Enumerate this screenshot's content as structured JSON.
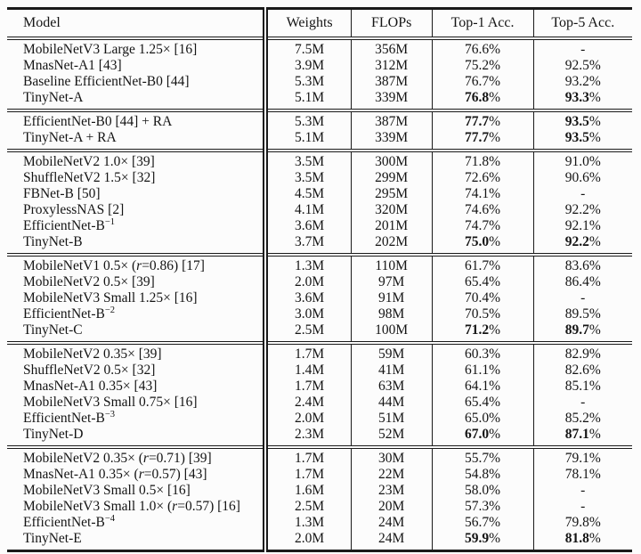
{
  "table": {
    "columns": [
      "Model",
      "Weights",
      "FLOPs",
      "Top-1 Acc.",
      "Top-5 Acc."
    ],
    "sections": [
      {
        "rows": [
          {
            "model": "MobileNetV3 Large 1.25× [16]",
            "weights": "7.5M",
            "flops": "356M",
            "top1": "76.6%",
            "top5": "-",
            "bold": false
          },
          {
            "model": "MnasNet-A1 [43]",
            "weights": "3.9M",
            "flops": "312M",
            "top1": "75.2%",
            "top5": "92.5%",
            "bold": false
          },
          {
            "model": "Baseline EfficientNet-B0 [44]",
            "weights": "5.3M",
            "flops": "387M",
            "top1": "76.7%",
            "top5": "93.2%",
            "bold": false
          },
          {
            "model": "TinyNet-A",
            "weights": "5.1M",
            "flops": "339M",
            "top1": "76.8%",
            "top5": "93.3%",
            "bold": true
          }
        ]
      },
      {
        "rows": [
          {
            "model": "EfficientNet-B0 [44] + RA",
            "weights": "5.3M",
            "flops": "387M",
            "top1": "77.7%",
            "top5": "93.5%",
            "bold": true
          },
          {
            "model": "TinyNet-A + RA",
            "weights": "5.1M",
            "flops": "339M",
            "top1": "77.7%",
            "top5": "93.5%",
            "bold": true
          }
        ]
      },
      {
        "rows": [
          {
            "model": "MobileNetV2 1.0× [39]",
            "weights": "3.5M",
            "flops": "300M",
            "top1": "71.8%",
            "top5": "91.0%",
            "bold": false
          },
          {
            "model": "ShuffleNetV2 1.5× [32]",
            "weights": "3.5M",
            "flops": "299M",
            "top1": "72.6%",
            "top5": "90.6%",
            "bold": false
          },
          {
            "model": "FBNet-B [50]",
            "weights": "4.5M",
            "flops": "295M",
            "top1": "74.1%",
            "top5": "-",
            "bold": false
          },
          {
            "model": "ProxylessNAS [2]",
            "weights": "4.1M",
            "flops": "320M",
            "top1": "74.6%",
            "top5": "92.2%",
            "bold": false
          },
          {
            "model": "EfficientNet-B",
            "sup": "−1",
            "weights": "3.6M",
            "flops": "201M",
            "top1": "74.7%",
            "top5": "92.1%",
            "bold": false
          },
          {
            "model": "TinyNet-B",
            "weights": "3.7M",
            "flops": "202M",
            "top1": "75.0%",
            "top5": "92.2%",
            "bold": true
          }
        ]
      },
      {
        "rows": [
          {
            "model": "MobileNetV1 0.5× (r=0.86) [17]",
            "weights": "1.3M",
            "flops": "110M",
            "top1": "61.7%",
            "top5": "83.6%",
            "bold": false
          },
          {
            "model": "MobileNetV2 0.5× [39]",
            "weights": "2.0M",
            "flops": "97M",
            "top1": "65.4%",
            "top5": "86.4%",
            "bold": false
          },
          {
            "model": "MobileNetV3 Small 1.25× [16]",
            "weights": "3.6M",
            "flops": "91M",
            "top1": "70.4%",
            "top5": "-",
            "bold": false
          },
          {
            "model": "EfficientNet-B",
            "sup": "−2",
            "weights": "3.0M",
            "flops": "98M",
            "top1": "70.5%",
            "top5": "89.5%",
            "bold": false
          },
          {
            "model": "TinyNet-C",
            "weights": "2.5M",
            "flops": "100M",
            "top1": "71.2%",
            "top5": "89.7%",
            "bold": true
          }
        ]
      },
      {
        "rows": [
          {
            "model": "MobileNetV2 0.35× [39]",
            "weights": "1.7M",
            "flops": "59M",
            "top1": "60.3%",
            "top5": "82.9%",
            "bold": false
          },
          {
            "model": "ShuffleNetV2 0.5× [32]",
            "weights": "1.4M",
            "flops": "41M",
            "top1": "61.1%",
            "top5": "82.6%",
            "bold": false
          },
          {
            "model": "MnasNet-A1 0.35× [43]",
            "weights": "1.7M",
            "flops": "63M",
            "top1": "64.1%",
            "top5": "85.1%",
            "bold": false
          },
          {
            "model": "MobileNetV3 Small 0.75× [16]",
            "weights": "2.4M",
            "flops": "44M",
            "top1": "65.4%",
            "top5": "-",
            "bold": false
          },
          {
            "model": "EfficientNet-B",
            "sup": "−3",
            "weights": "2.0M",
            "flops": "51M",
            "top1": "65.0%",
            "top5": "85.2%",
            "bold": false
          },
          {
            "model": "TinyNet-D",
            "weights": "2.3M",
            "flops": "52M",
            "top1": "67.0%",
            "top5": "87.1%",
            "bold": true
          }
        ]
      },
      {
        "rows": [
          {
            "model": "MobileNetV2 0.35× (r=0.71) [39]",
            "weights": "1.7M",
            "flops": "30M",
            "top1": "55.7%",
            "top5": "79.1%",
            "bold": false
          },
          {
            "model": "MnasNet-A1 0.35× (r=0.57) [43]",
            "weights": "1.7M",
            "flops": "22M",
            "top1": "54.8%",
            "top5": "78.1%",
            "bold": false
          },
          {
            "model": "MobileNetV3 Small 0.5× [16]",
            "weights": "1.6M",
            "flops": "23M",
            "top1": "58.0%",
            "top5": "-",
            "bold": false
          },
          {
            "model": "MobileNetV3 Small 1.0× (r=0.57) [16]",
            "weights": "2.5M",
            "flops": "20M",
            "top1": "57.3%",
            "top5": "-",
            "bold": false
          },
          {
            "model": "EfficientNet-B",
            "sup": "−4",
            "weights": "1.3M",
            "flops": "24M",
            "top1": "56.7%",
            "top5": "79.8%",
            "bold": false
          },
          {
            "model": "TinyNet-E",
            "weights": "2.0M",
            "flops": "24M",
            "top1": "59.9%",
            "top5": "81.8%",
            "bold": true
          }
        ]
      }
    ]
  }
}
